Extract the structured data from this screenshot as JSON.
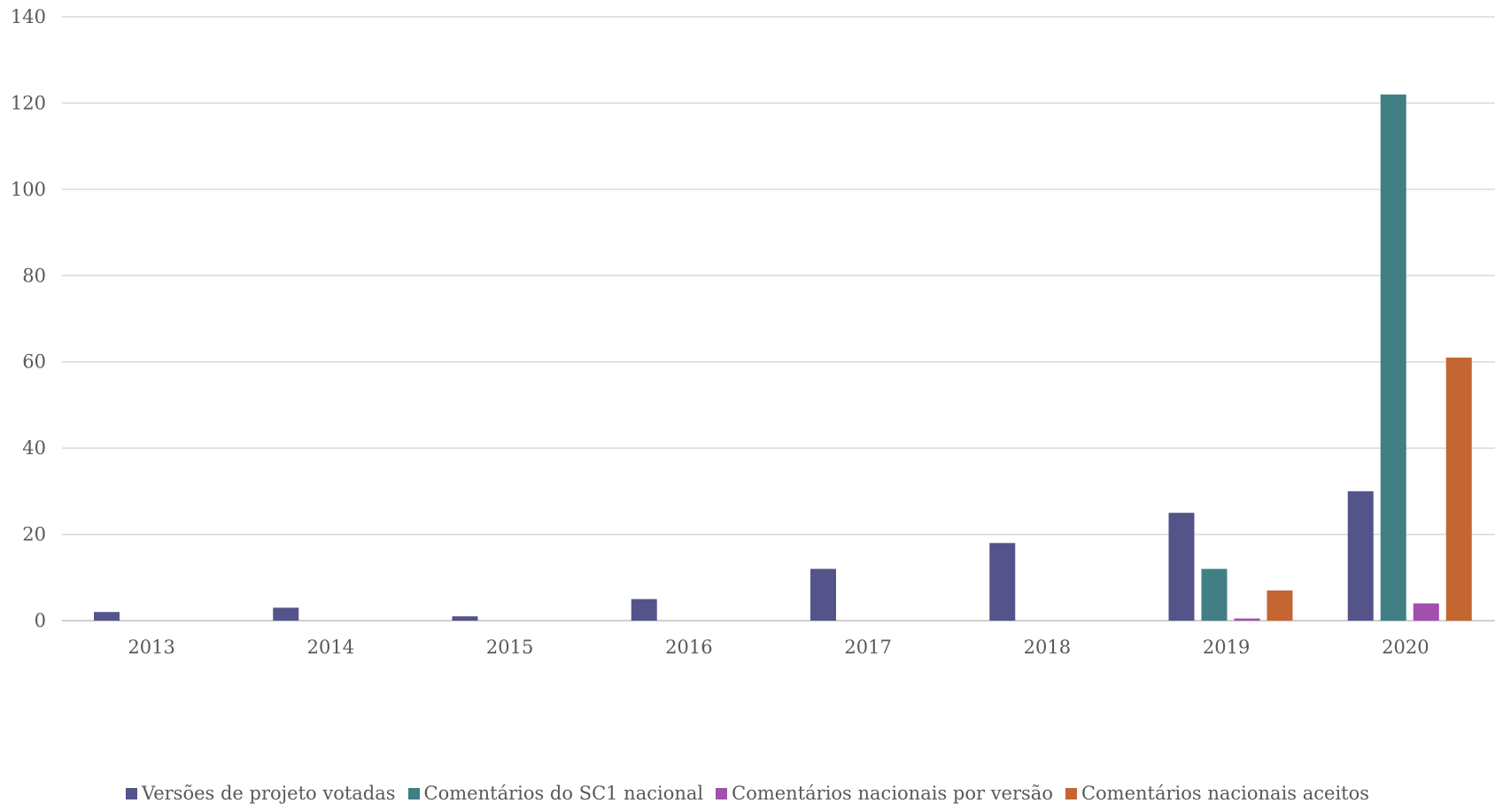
{
  "chart_data": {
    "type": "bar",
    "categories": [
      "2013",
      "2014",
      "2015",
      "2016",
      "2017",
      "2018",
      "2019",
      "2020"
    ],
    "series": [
      {
        "name": "Versões de projeto votadas",
        "color": "#54548a",
        "values": [
          2,
          3,
          1,
          5,
          12,
          18,
          25,
          30
        ]
      },
      {
        "name": "Comentários do SC1 nacional",
        "color": "#417f85",
        "values": [
          0,
          0,
          0,
          0,
          0,
          0,
          12,
          122
        ]
      },
      {
        "name": "Comentários nacionais por versão",
        "color": "#a24fad",
        "values": [
          0,
          0,
          0,
          0,
          0,
          0,
          0.5,
          4
        ]
      },
      {
        "name": "Comentários nacionais aceitos",
        "color": "#c46631",
        "values": [
          0,
          0,
          0,
          0,
          0,
          0,
          7,
          61
        ]
      }
    ],
    "yticks": [
      "0",
      "20",
      "40",
      "60",
      "80",
      "100",
      "120",
      "140"
    ],
    "ylim": [
      0,
      140
    ],
    "grid": true,
    "legend_position": "bottom"
  }
}
